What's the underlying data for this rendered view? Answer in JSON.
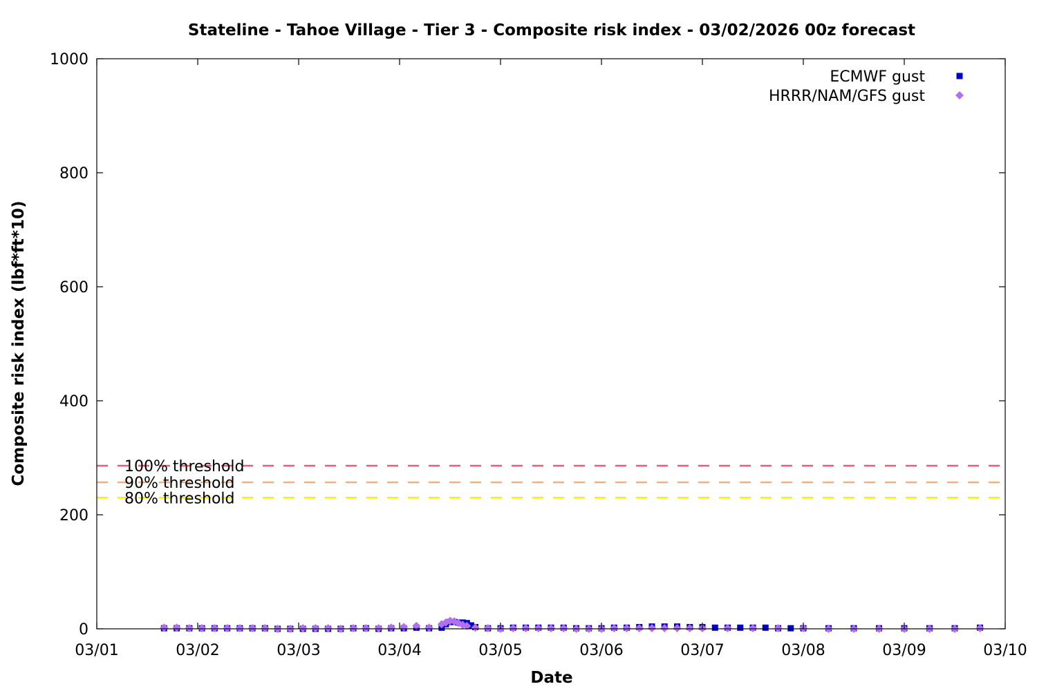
{
  "chart_data": {
    "type": "scatter",
    "title": "Stateline - Tahoe Village - Tier 3 - Composite risk index - 03/02/2026 00z forecast",
    "xlabel": "Date",
    "ylabel": "Composite risk index (lbf*ft*10)",
    "x_tick_labels": [
      "03/01",
      "03/02",
      "03/03",
      "03/04",
      "03/05",
      "03/06",
      "03/07",
      "03/08",
      "03/09",
      "03/10"
    ],
    "xlim": [
      "2026-03-01",
      "2026-03-10"
    ],
    "ylim": [
      0,
      1000
    ],
    "y_ticks": [
      0,
      200,
      400,
      600,
      800,
      1000
    ],
    "legend_position": "top-right",
    "grid": false,
    "thresholds": [
      {
        "label": "100% threshold",
        "value": 286,
        "color": "#e0607a"
      },
      {
        "label": "90% threshold",
        "value": 257,
        "color": "#f0b080"
      },
      {
        "label": "80% threshold",
        "value": 230,
        "color": "#f5f000"
      }
    ],
    "series": [
      {
        "name": "ECMWF gust",
        "color": "#0000cc",
        "marker": "square",
        "points": [
          [
            "2026-03-01T16:00",
            1
          ],
          [
            "2026-03-01T19:00",
            1
          ],
          [
            "2026-03-01T22:00",
            1
          ],
          [
            "2026-03-02T01:00",
            1
          ],
          [
            "2026-03-02T04:00",
            1
          ],
          [
            "2026-03-02T07:00",
            1
          ],
          [
            "2026-03-02T10:00",
            1
          ],
          [
            "2026-03-02T13:00",
            1
          ],
          [
            "2026-03-02T16:00",
            1
          ],
          [
            "2026-03-02T19:00",
            0
          ],
          [
            "2026-03-02T22:00",
            0
          ],
          [
            "2026-03-03T01:00",
            0
          ],
          [
            "2026-03-03T04:00",
            0
          ],
          [
            "2026-03-03T07:00",
            0
          ],
          [
            "2026-03-03T10:00",
            0
          ],
          [
            "2026-03-03T13:00",
            1
          ],
          [
            "2026-03-03T16:00",
            1
          ],
          [
            "2026-03-03T19:00",
            0
          ],
          [
            "2026-03-03T22:00",
            1
          ],
          [
            "2026-03-04T01:00",
            1
          ],
          [
            "2026-03-04T04:00",
            2
          ],
          [
            "2026-03-04T07:00",
            1
          ],
          [
            "2026-03-04T10:00",
            2
          ],
          [
            "2026-03-04T11:00",
            8
          ],
          [
            "2026-03-04T12:00",
            12
          ],
          [
            "2026-03-04T13:00",
            12
          ],
          [
            "2026-03-04T14:00",
            11
          ],
          [
            "2026-03-04T15:00",
            11
          ],
          [
            "2026-03-04T16:00",
            10
          ],
          [
            "2026-03-04T17:00",
            6
          ],
          [
            "2026-03-04T18:00",
            3
          ],
          [
            "2026-03-04T21:00",
            1
          ],
          [
            "2026-03-05T00:00",
            1
          ],
          [
            "2026-03-05T03:00",
            2
          ],
          [
            "2026-03-05T06:00",
            2
          ],
          [
            "2026-03-05T09:00",
            2
          ],
          [
            "2026-03-05T12:00",
            2
          ],
          [
            "2026-03-05T15:00",
            2
          ],
          [
            "2026-03-05T18:00",
            1
          ],
          [
            "2026-03-05T21:00",
            1
          ],
          [
            "2026-03-06T00:00",
            1
          ],
          [
            "2026-03-06T03:00",
            2
          ],
          [
            "2026-03-06T06:00",
            2
          ],
          [
            "2026-03-06T09:00",
            3
          ],
          [
            "2026-03-06T12:00",
            4
          ],
          [
            "2026-03-06T15:00",
            4
          ],
          [
            "2026-03-06T18:00",
            4
          ],
          [
            "2026-03-06T21:00",
            3
          ],
          [
            "2026-03-07T00:00",
            3
          ],
          [
            "2026-03-07T03:00",
            2
          ],
          [
            "2026-03-07T06:00",
            2
          ],
          [
            "2026-03-07T09:00",
            2
          ],
          [
            "2026-03-07T12:00",
            2
          ],
          [
            "2026-03-07T15:00",
            2
          ],
          [
            "2026-03-07T18:00",
            1
          ],
          [
            "2026-03-07T21:00",
            1
          ],
          [
            "2026-03-08T00:00",
            1
          ],
          [
            "2026-03-08T06:00",
            1
          ],
          [
            "2026-03-08T12:00",
            1
          ],
          [
            "2026-03-08T18:00",
            1
          ],
          [
            "2026-03-09T00:00",
            1
          ],
          [
            "2026-03-09T06:00",
            1
          ],
          [
            "2026-03-09T12:00",
            1
          ],
          [
            "2026-03-09T18:00",
            2
          ]
        ]
      },
      {
        "name": "HRRR/NAM/GFS gust",
        "color": "#b070f0",
        "marker": "diamond",
        "points": [
          [
            "2026-03-01T16:00",
            2
          ],
          [
            "2026-03-01T19:00",
            2
          ],
          [
            "2026-03-01T22:00",
            1
          ],
          [
            "2026-03-02T01:00",
            1
          ],
          [
            "2026-03-02T04:00",
            1
          ],
          [
            "2026-03-02T07:00",
            1
          ],
          [
            "2026-03-02T10:00",
            1
          ],
          [
            "2026-03-02T13:00",
            1
          ],
          [
            "2026-03-02T16:00",
            1
          ],
          [
            "2026-03-02T19:00",
            0
          ],
          [
            "2026-03-02T22:00",
            0
          ],
          [
            "2026-03-03T01:00",
            1
          ],
          [
            "2026-03-03T04:00",
            1
          ],
          [
            "2026-03-03T07:00",
            1
          ],
          [
            "2026-03-03T10:00",
            0
          ],
          [
            "2026-03-03T13:00",
            1
          ],
          [
            "2026-03-03T16:00",
            1
          ],
          [
            "2026-03-03T19:00",
            1
          ],
          [
            "2026-03-03T22:00",
            2
          ],
          [
            "2026-03-04T01:00",
            3
          ],
          [
            "2026-03-04T04:00",
            5
          ],
          [
            "2026-03-04T07:00",
            2
          ],
          [
            "2026-03-04T10:00",
            8
          ],
          [
            "2026-03-04T11:00",
            11
          ],
          [
            "2026-03-04T12:00",
            14
          ],
          [
            "2026-03-04T13:00",
            13
          ],
          [
            "2026-03-04T14:00",
            10
          ],
          [
            "2026-03-04T15:00",
            7
          ],
          [
            "2026-03-04T16:00",
            5
          ],
          [
            "2026-03-04T18:00",
            2
          ],
          [
            "2026-03-04T21:00",
            1
          ],
          [
            "2026-03-05T00:00",
            0
          ],
          [
            "2026-03-05T03:00",
            1
          ],
          [
            "2026-03-05T06:00",
            1
          ],
          [
            "2026-03-05T09:00",
            1
          ],
          [
            "2026-03-05T12:00",
            1
          ],
          [
            "2026-03-05T15:00",
            1
          ],
          [
            "2026-03-05T18:00",
            0
          ],
          [
            "2026-03-05T21:00",
            0
          ],
          [
            "2026-03-06T00:00",
            0
          ],
          [
            "2026-03-06T03:00",
            1
          ],
          [
            "2026-03-06T06:00",
            1
          ],
          [
            "2026-03-06T09:00",
            1
          ],
          [
            "2026-03-06T12:00",
            1
          ],
          [
            "2026-03-06T15:00",
            1
          ],
          [
            "2026-03-06T18:00",
            1
          ],
          [
            "2026-03-06T21:00",
            1
          ],
          [
            "2026-03-07T00:00",
            1
          ],
          [
            "2026-03-07T06:00",
            1
          ],
          [
            "2026-03-07T12:00",
            1
          ],
          [
            "2026-03-07T18:00",
            1
          ],
          [
            "2026-03-08T00:00",
            1
          ],
          [
            "2026-03-08T06:00",
            0
          ],
          [
            "2026-03-08T12:00",
            0
          ],
          [
            "2026-03-08T18:00",
            0
          ],
          [
            "2026-03-09T00:00",
            0
          ],
          [
            "2026-03-09T06:00",
            0
          ],
          [
            "2026-03-09T12:00",
            0
          ],
          [
            "2026-03-09T18:00",
            1
          ]
        ]
      }
    ]
  }
}
